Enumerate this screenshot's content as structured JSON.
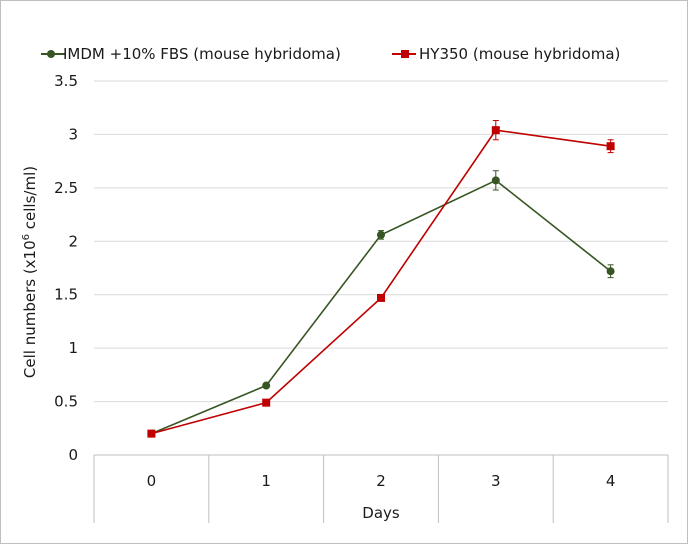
{
  "chart_data": {
    "type": "line",
    "title": "",
    "xlabel": "Days",
    "ylabel_parts": {
      "before": "Cell numbers (x10",
      "sup": "6",
      "after": " cells/ml)"
    },
    "categories": [
      "0",
      "1",
      "2",
      "3",
      "4"
    ],
    "ylim": [
      0,
      3.5
    ],
    "yticks": [
      "0",
      "0.5",
      "1",
      "1.5",
      "2",
      "2.5",
      "3",
      "3.5"
    ],
    "grid": true,
    "legend_position": "top",
    "series": [
      {
        "name": "IMDM +10% FBS (mouse hybridoma)",
        "color": "#375623",
        "marker": "circle",
        "values": [
          0.2,
          0.65,
          2.06,
          2.57,
          1.72
        ],
        "errors": [
          0.0,
          0.02,
          0.04,
          0.09,
          0.06
        ]
      },
      {
        "name": "HY350 (mouse hybridoma)",
        "color": "#c00000",
        "marker": "square",
        "values": [
          0.2,
          0.49,
          1.47,
          3.04,
          2.89
        ],
        "errors": [
          0.0,
          0.01,
          0.02,
          0.09,
          0.06
        ]
      }
    ]
  }
}
